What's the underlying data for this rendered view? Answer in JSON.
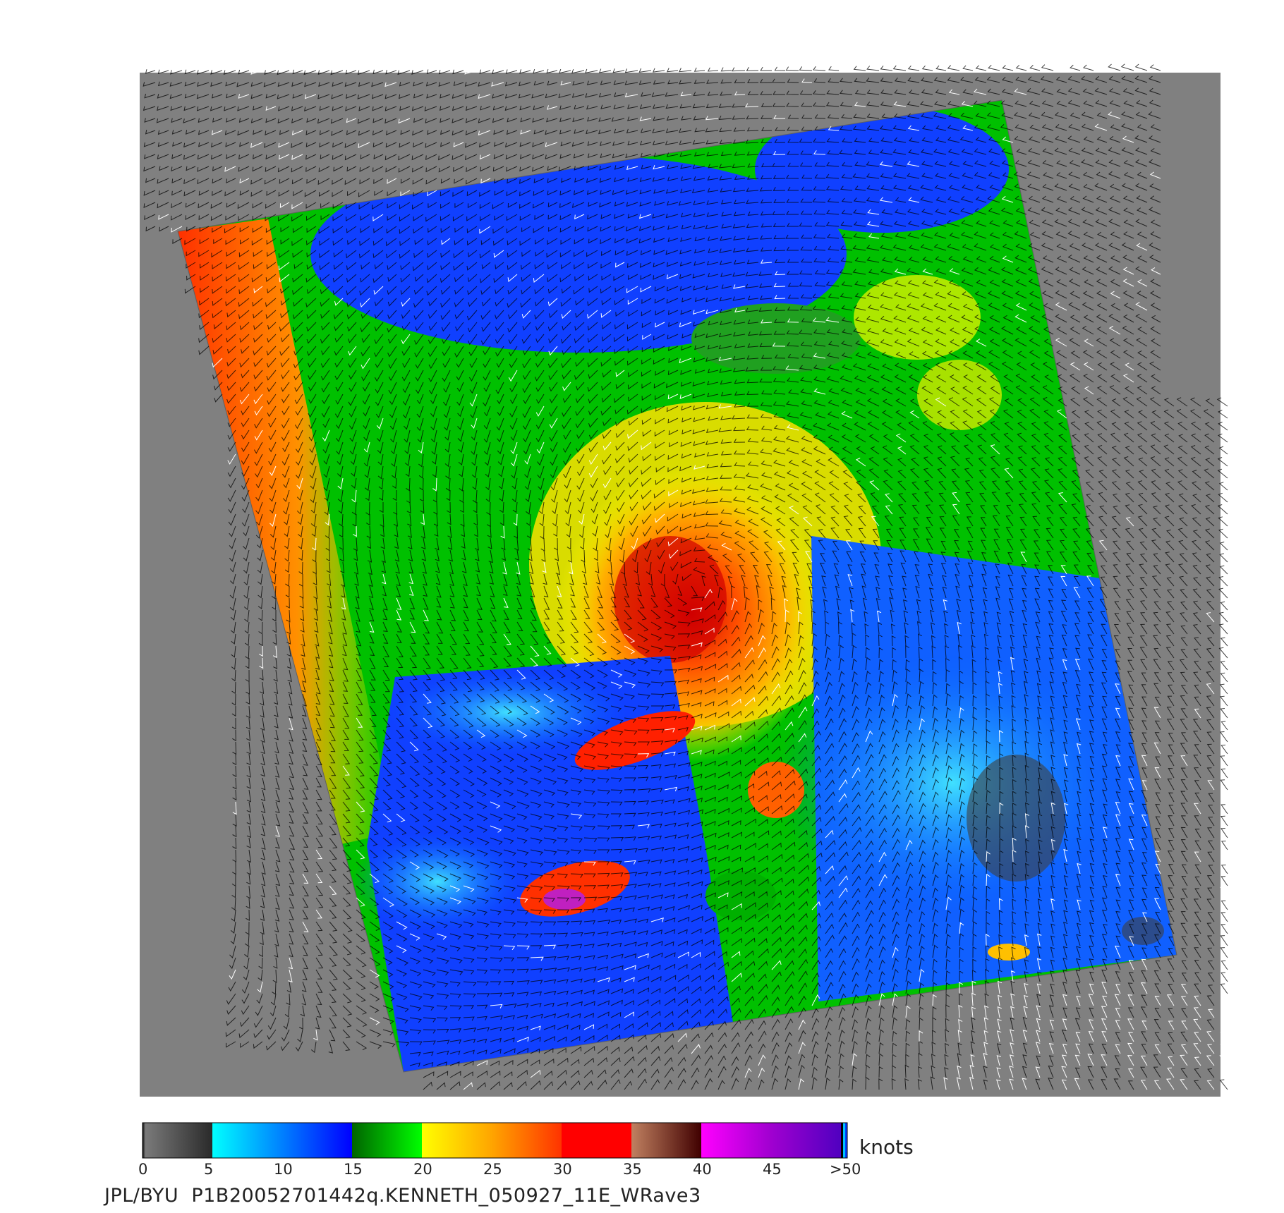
{
  "colorbar": {
    "ticks": [
      "0",
      "5",
      "10",
      "15",
      "20",
      "25",
      "30",
      "35",
      "40",
      "45",
      ">50"
    ],
    "units": "knots",
    "segments": [
      {
        "from": "#000000",
        "to": "#7a7a7a",
        "range": "0-0.1"
      },
      {
        "from": "#7a7a7a",
        "to": "#2a2a2a",
        "range": "0-5"
      },
      {
        "from": "#00ffff",
        "to": "#0080ff",
        "range": "5-10"
      },
      {
        "from": "#0080ff",
        "to": "#0000ff",
        "range": "10-15"
      },
      {
        "from": "#006400",
        "to": "#00ff00",
        "range": "15-20"
      },
      {
        "from": "#ffff00",
        "to": "#ffa500",
        "range": "20-25"
      },
      {
        "from": "#ffa500",
        "to": "#ff3300",
        "range": "25-30"
      },
      {
        "from": "#ff0000",
        "to": "#ff0000",
        "range": "30-35"
      },
      {
        "from": "#c08060",
        "to": "#400000",
        "range": "35-40"
      },
      {
        "from": "#ff00ff",
        "to": "#a000d0",
        "range": "40-45"
      },
      {
        "from": "#a000d0",
        "to": "#5000c0",
        "range": "45-50"
      }
    ]
  },
  "colors": {
    "background": "#808080",
    "vector_land": "#000000",
    "vector_rain": "#ffffff"
  },
  "footer": {
    "text": "JPL/BYU  P1B20052701442q.KENNETH_050927_11E_WRave3"
  }
}
